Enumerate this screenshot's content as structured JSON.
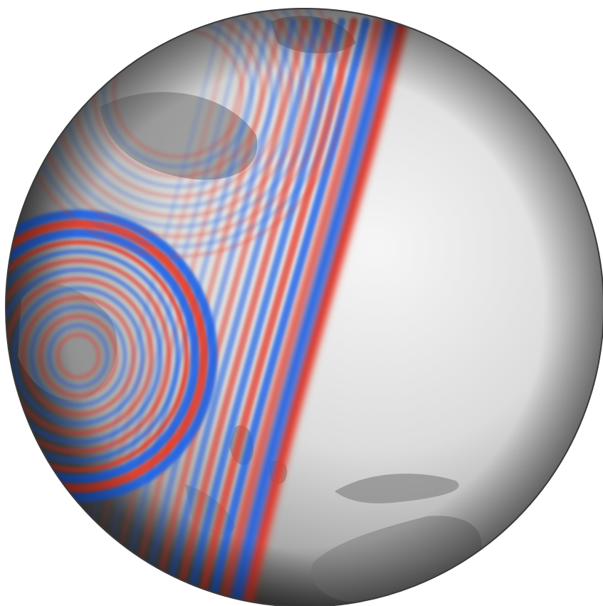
{
  "scene": {
    "subject": "globe",
    "background_color": "#ffffff",
    "globe_light_color": "#f2f2f2",
    "globe_shadow_color": "#5a5a5a",
    "land_color": "#8c8c8c",
    "wave_positive_color": "#e23b2a",
    "wave_negative_color": "#1f63e6"
  }
}
